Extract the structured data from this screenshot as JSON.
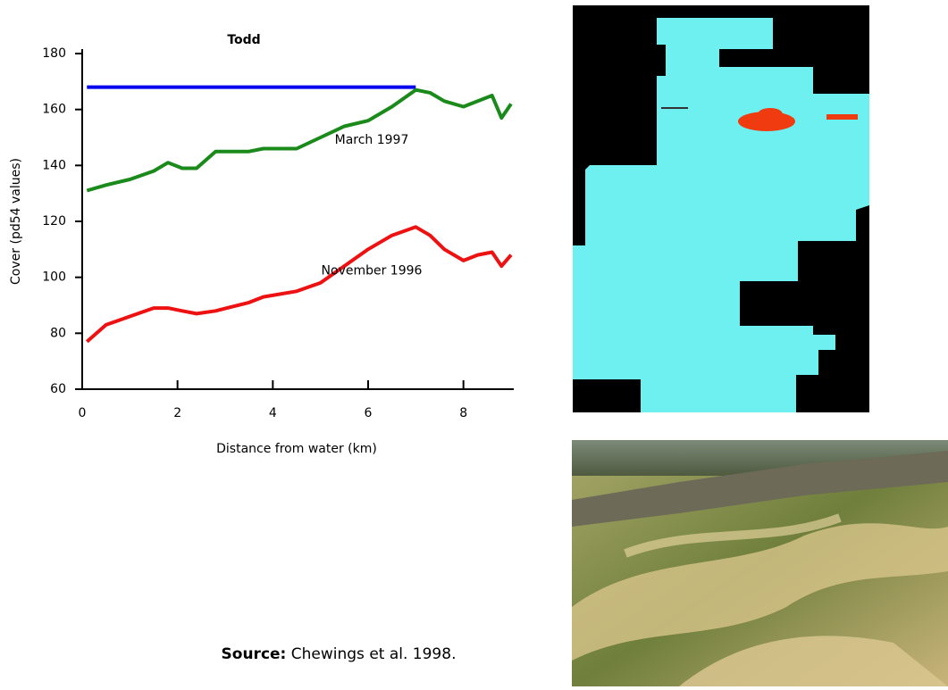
{
  "chart_data": {
    "type": "line",
    "title": "Todd",
    "x_label": "Distance from water (km)",
    "y_label": "Cover (pd54 values)",
    "x": [
      0.1,
      0.5,
      1,
      1.5,
      1.8,
      2.1,
      2.4,
      2.8,
      3.5,
      3.8,
      4.5,
      5,
      5.5,
      6,
      6.5,
      7,
      7.3,
      7.6,
      8,
      8.3,
      8.6,
      8.8,
      9
    ],
    "series": [
      {
        "color": "#0000ee",
        "x": [
          0.1,
          7.0
        ],
        "values": [
          168,
          168
        ]
      },
      {
        "name": "March 1997",
        "color": "#1a8a1a",
        "values": [
          131,
          133,
          135,
          138,
          141,
          139,
          139,
          145,
          145,
          146,
          146,
          150,
          154,
          156,
          161,
          167,
          166,
          163,
          161,
          163,
          165,
          157,
          162
        ]
      },
      {
        "name": "November 1996",
        "color": "#ee1111",
        "values": [
          77,
          83,
          86,
          89,
          89,
          88,
          87,
          88,
          91,
          93,
          95,
          98,
          104,
          110,
          115,
          118,
          115,
          110,
          106,
          108,
          109,
          104,
          108
        ]
      }
    ],
    "xlim": [
      0,
      9
    ],
    "xticks": [
      0,
      2,
      4,
      6,
      8
    ],
    "ylim": [
      60,
      180
    ],
    "yticks": [
      60,
      80,
      100,
      120,
      140,
      160,
      180
    ]
  },
  "source": {
    "label": "Source:",
    "text": "Chewings et al. 1998."
  }
}
